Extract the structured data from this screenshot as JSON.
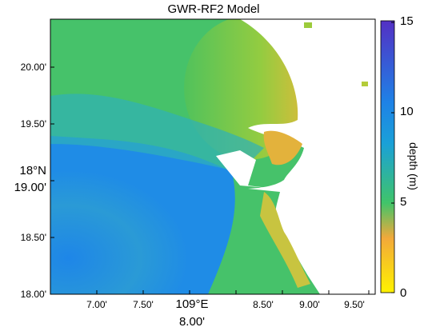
{
  "title": "GWR-RF2 Model",
  "y_axis": {
    "ticks": [
      "20.00'",
      "19.50'",
      "19.00'",
      "18.50'",
      "18.00'"
    ],
    "degree_label": "18°N"
  },
  "x_axis": {
    "ticks": [
      "7.00'",
      "7.50'",
      "8.50'",
      "9.00'",
      "9.50'"
    ],
    "degree_label": "109°E",
    "center_tick": "8.00'"
  },
  "colorbar": {
    "label": "depth (m)",
    "ticks": [
      "15",
      "10",
      "5",
      "0"
    ],
    "min": 0,
    "max": 15,
    "colors": [
      "#ffe600",
      "#f5b82a",
      "#42c864",
      "#1e96e6",
      "#5a32c8"
    ]
  }
}
